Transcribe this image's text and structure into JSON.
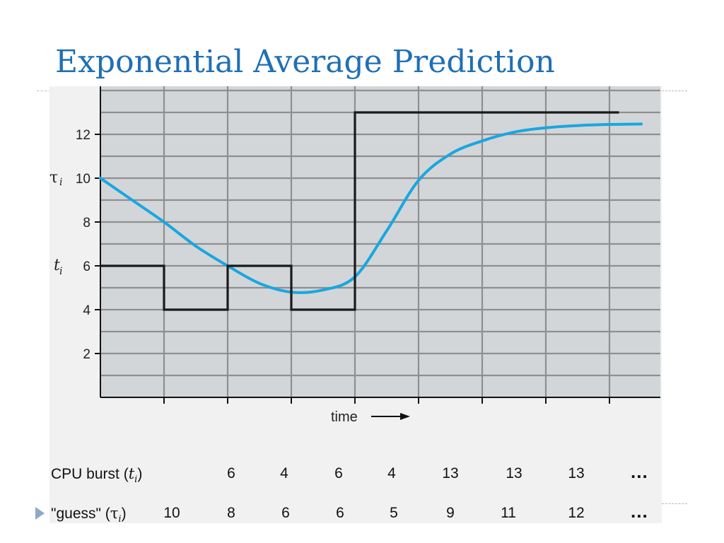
{
  "slide": {
    "title": "Exponential Average Prediction"
  },
  "chart_data": {
    "type": "line",
    "y_ticks": [
      "12",
      "10",
      "8",
      "6",
      "4",
      "2"
    ],
    "y_tick_values": [
      12,
      10,
      8,
      6,
      4,
      2
    ],
    "ylim": [
      0,
      14
    ],
    "xlim": [
      0,
      8.8
    ],
    "grid": true,
    "y_markers": {
      "tau": "τ",
      "tau_sub": "i",
      "t": "t",
      "t_sub": "i"
    },
    "xlabel": "time",
    "series": [
      {
        "type": "step",
        "color": "#1a1a1a",
        "points": [
          [
            0,
            6
          ],
          [
            1,
            6
          ],
          [
            1,
            4
          ],
          [
            2,
            4
          ],
          [
            2,
            6
          ],
          [
            3,
            6
          ],
          [
            3,
            4
          ],
          [
            4,
            4
          ],
          [
            4,
            13
          ],
          [
            8.15,
            13
          ]
        ]
      },
      {
        "type": "curve",
        "color": "#1aa6e0",
        "points": [
          [
            0,
            10
          ],
          [
            0.5,
            9
          ],
          [
            1,
            8
          ],
          [
            1.5,
            6.9
          ],
          [
            2,
            6
          ],
          [
            2.5,
            5.2
          ],
          [
            3,
            4.8
          ],
          [
            3.5,
            4.9
          ],
          [
            4,
            5.5
          ],
          [
            4.5,
            7.6
          ],
          [
            5,
            9.9
          ],
          [
            5.5,
            11.1
          ],
          [
            6,
            11.7
          ],
          [
            6.5,
            12.1
          ],
          [
            7,
            12.3
          ],
          [
            7.5,
            12.4
          ],
          [
            8,
            12.45
          ],
          [
            8.5,
            12.47
          ]
        ]
      }
    ]
  },
  "table": {
    "burst_label": {
      "pre": "CPU burst (",
      "var": "t",
      "sub": "i",
      "post": ")"
    },
    "guess_label": {
      "pre": "\"guess\" (",
      "var": "τ",
      "sub": "i",
      "post": ")"
    },
    "burst_values": [
      "6",
      "4",
      "6",
      "4",
      "13",
      "13",
      "13"
    ],
    "guess_values": [
      "10",
      "8",
      "6",
      "6",
      "5",
      "9",
      "11",
      "12"
    ],
    "ellipsis": "..."
  }
}
